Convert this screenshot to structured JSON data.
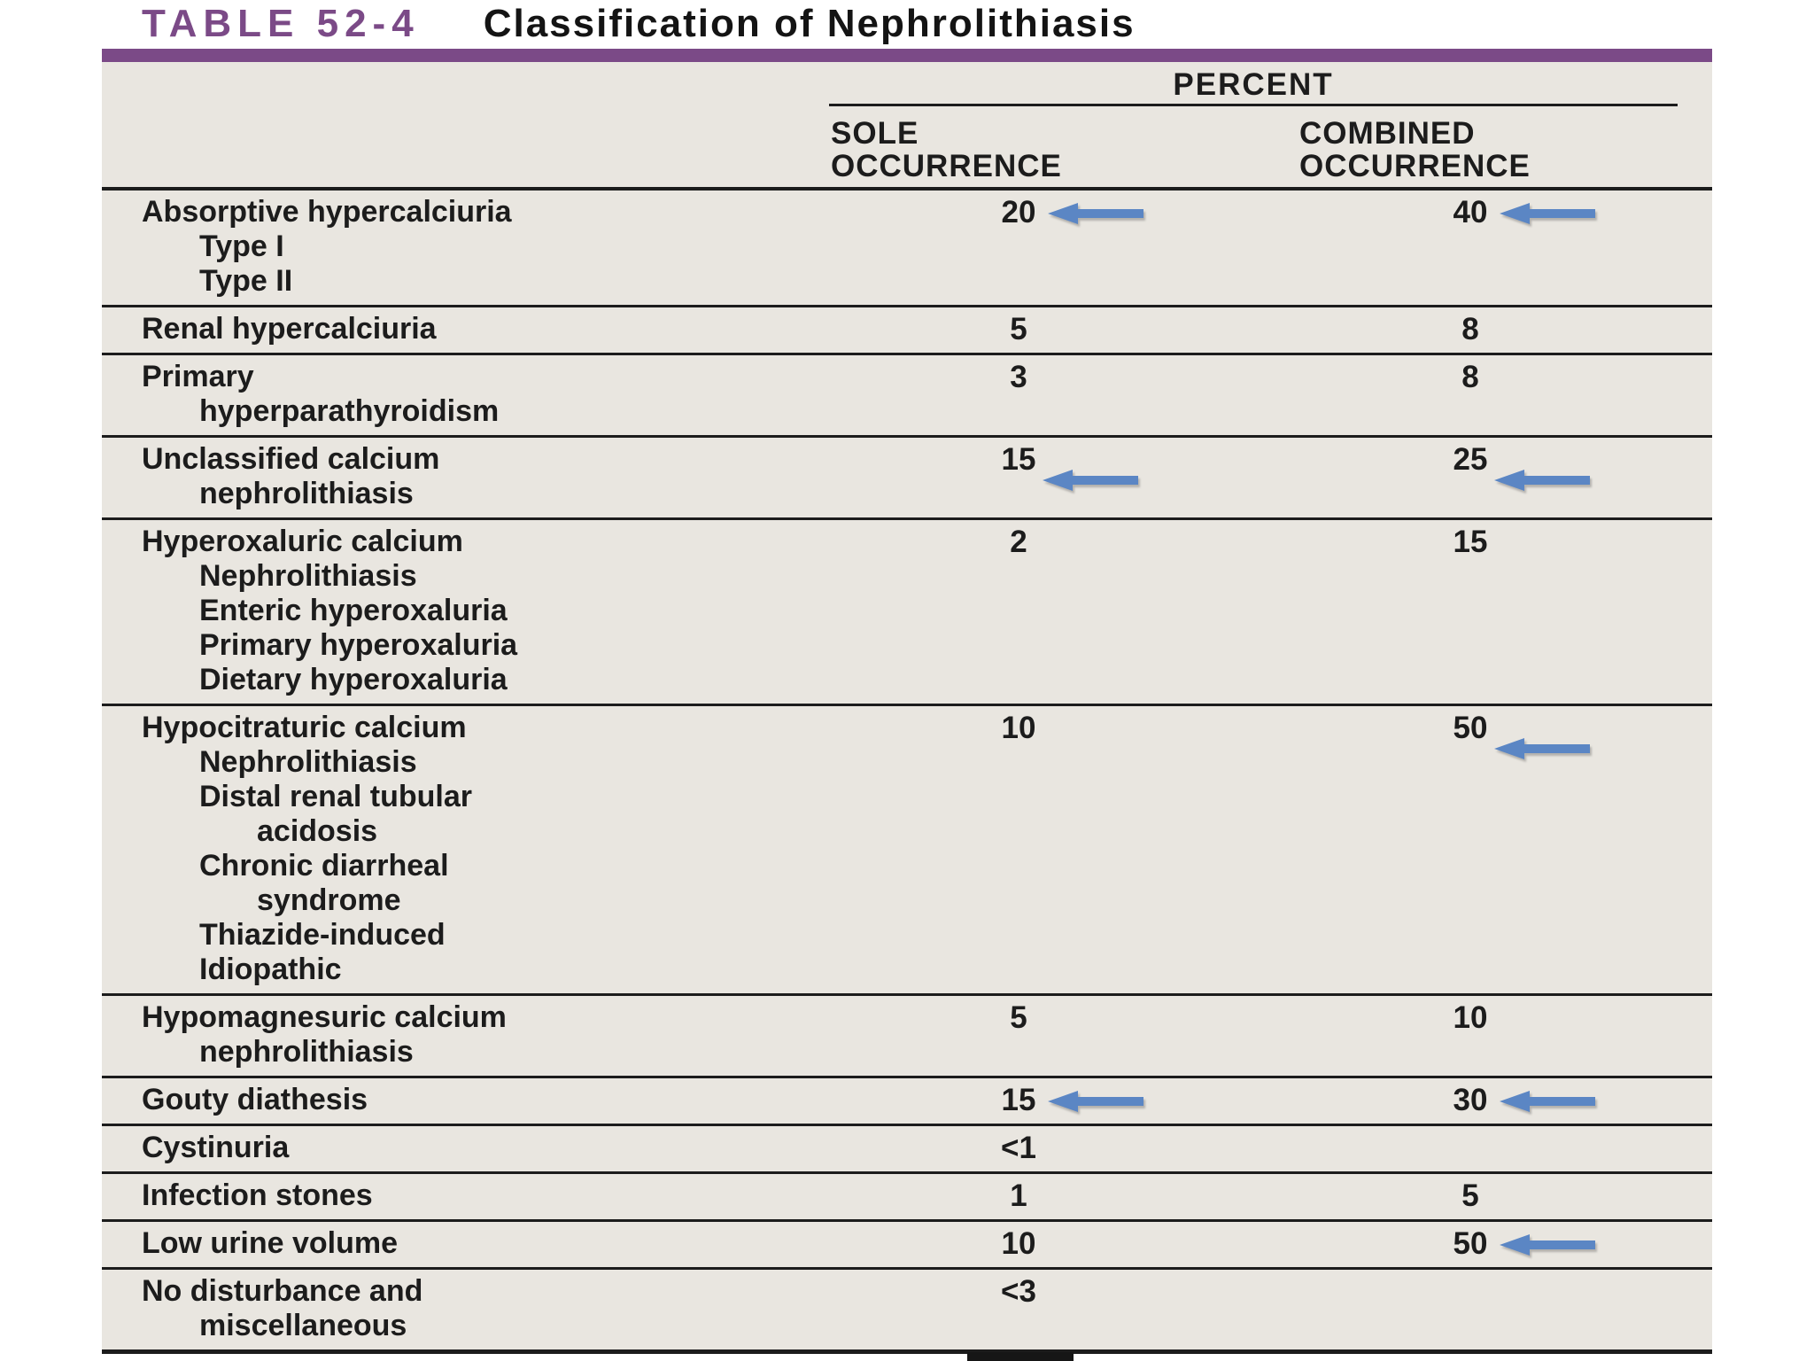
{
  "title": {
    "label": "TABLE 52-4",
    "caption": "Classification of Nephrolithiasis"
  },
  "colors": {
    "accent_purple": "#7b4a87",
    "arrow_blue": "#5b86c4",
    "table_background": "#e9e6e0",
    "rule": "#1c1c1c"
  },
  "table": {
    "group_header": "PERCENT",
    "columns": [
      {
        "line1": "SOLE",
        "line2": "OCCURRENCE"
      },
      {
        "line1": "COMBINED",
        "line2": "OCCURRENCE"
      }
    ],
    "rows": [
      {
        "lines": [
          {
            "text": "Absorptive hypercalciuria",
            "indent": 0
          },
          {
            "text": "Type I",
            "indent": 1
          },
          {
            "text": "Type II",
            "indent": 1
          }
        ],
        "sole": {
          "value": "20",
          "arrow": true,
          "arrow_drop": false
        },
        "combined": {
          "value": "40",
          "arrow": true,
          "arrow_drop": false
        }
      },
      {
        "lines": [
          {
            "text": "Renal hypercalciuria",
            "indent": 0
          }
        ],
        "sole": {
          "value": "5",
          "arrow": false,
          "arrow_drop": false
        },
        "combined": {
          "value": "8",
          "arrow": false,
          "arrow_drop": false
        }
      },
      {
        "lines": [
          {
            "text": "Primary",
            "indent": 0
          },
          {
            "text": "hyperparathyroidism",
            "indent": 1
          }
        ],
        "sole": {
          "value": "3",
          "arrow": false,
          "arrow_drop": false
        },
        "combined": {
          "value": "8",
          "arrow": false,
          "arrow_drop": false
        }
      },
      {
        "lines": [
          {
            "text": "Unclassified calcium",
            "indent": 0
          },
          {
            "text": "nephrolithiasis",
            "indent": 1
          }
        ],
        "sole": {
          "value": "15",
          "arrow": true,
          "arrow_drop": true
        },
        "combined": {
          "value": "25",
          "arrow": true,
          "arrow_drop": true
        }
      },
      {
        "lines": [
          {
            "text": "Hyperoxaluric calcium",
            "indent": 0
          },
          {
            "text": "Nephrolithiasis",
            "indent": 1
          },
          {
            "text": "Enteric hyperoxaluria",
            "indent": 1
          },
          {
            "text": "Primary hyperoxaluria",
            "indent": 1
          },
          {
            "text": "Dietary hyperoxaluria",
            "indent": 1
          }
        ],
        "sole": {
          "value": "2",
          "arrow": false,
          "arrow_drop": false
        },
        "combined": {
          "value": "15",
          "arrow": false,
          "arrow_drop": false
        }
      },
      {
        "lines": [
          {
            "text": "Hypocitraturic calcium",
            "indent": 0
          },
          {
            "text": "Nephrolithiasis",
            "indent": 1
          },
          {
            "text": "Distal renal tubular",
            "indent": 1
          },
          {
            "text": "acidosis",
            "indent": 2
          },
          {
            "text": "Chronic diarrheal",
            "indent": 1
          },
          {
            "text": "syndrome",
            "indent": 2
          },
          {
            "text": "Thiazide-induced",
            "indent": 1
          },
          {
            "text": "Idiopathic",
            "indent": 1
          }
        ],
        "sole": {
          "value": "10",
          "arrow": false,
          "arrow_drop": false
        },
        "combined": {
          "value": "50",
          "arrow": true,
          "arrow_drop": true
        }
      },
      {
        "lines": [
          {
            "text": "Hypomagnesuric calcium",
            "indent": 0
          },
          {
            "text": "nephrolithiasis",
            "indent": 1
          }
        ],
        "sole": {
          "value": "5",
          "arrow": false,
          "arrow_drop": false
        },
        "combined": {
          "value": "10",
          "arrow": false,
          "arrow_drop": false
        }
      },
      {
        "lines": [
          {
            "text": "Gouty diathesis",
            "indent": 0
          }
        ],
        "sole": {
          "value": "15",
          "arrow": true,
          "arrow_drop": false
        },
        "combined": {
          "value": "30",
          "arrow": true,
          "arrow_drop": false
        }
      },
      {
        "lines": [
          {
            "text": "Cystinuria",
            "indent": 0
          }
        ],
        "sole": {
          "value": "<1",
          "arrow": false,
          "arrow_drop": false
        },
        "combined": {
          "value": "",
          "arrow": false,
          "arrow_drop": false
        }
      },
      {
        "lines": [
          {
            "text": "Infection stones",
            "indent": 0
          }
        ],
        "sole": {
          "value": "1",
          "arrow": false,
          "arrow_drop": false
        },
        "combined": {
          "value": "5",
          "arrow": false,
          "arrow_drop": false
        }
      },
      {
        "lines": [
          {
            "text": "Low urine volume",
            "indent": 0
          }
        ],
        "sole": {
          "value": "10",
          "arrow": false,
          "arrow_drop": false
        },
        "combined": {
          "value": "50",
          "arrow": true,
          "arrow_drop": false
        }
      },
      {
        "lines": [
          {
            "text": "No disturbance and",
            "indent": 0
          },
          {
            "text": "miscellaneous",
            "indent": 1
          }
        ],
        "sole": {
          "value": "<3",
          "arrow": false,
          "arrow_drop": false
        },
        "combined": {
          "value": "",
          "arrow": false,
          "arrow_drop": false
        }
      }
    ]
  }
}
